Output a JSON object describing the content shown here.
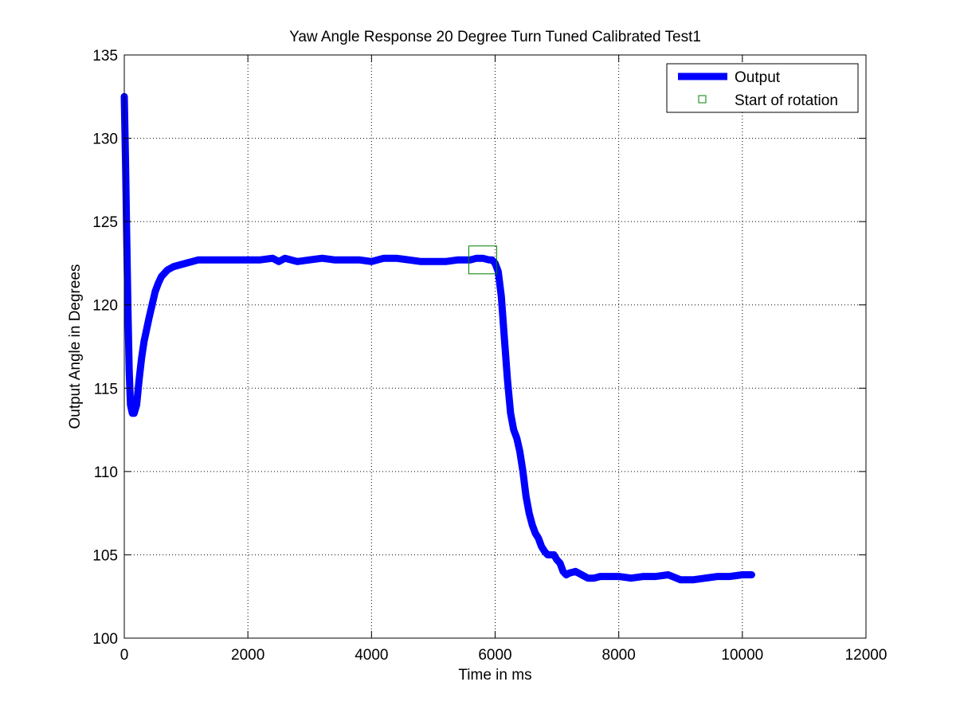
{
  "colors": {
    "output": "#0000ff",
    "marker": "#008000",
    "grid": "#000000",
    "axes": "#000000",
    "background": "#ffffff"
  },
  "chart_data": {
    "type": "line",
    "title": "Yaw Angle Response 20 Degree Turn Tuned Calibrated Test1",
    "xlabel": "Time in ms",
    "ylabel": "Output Angle in Degrees",
    "xlim": [
      0,
      12000
    ],
    "ylim": [
      100,
      135
    ],
    "xticks": [
      0,
      2000,
      4000,
      6000,
      8000,
      10000,
      12000
    ],
    "yticks": [
      100,
      105,
      110,
      115,
      120,
      125,
      130,
      135
    ],
    "xtick_labels": [
      "0",
      "2000",
      "4000",
      "6000",
      "8000",
      "10000",
      "12000"
    ],
    "ytick_labels": [
      "100",
      "105",
      "110",
      "115",
      "120",
      "125",
      "130",
      "135"
    ],
    "grid": true,
    "legend_position": "top-right",
    "legend": [
      "Output",
      "Start of rotation"
    ],
    "series": [
      {
        "name": "Output",
        "color": "#0000ff",
        "x": [
          0,
          20,
          40,
          60,
          80,
          100,
          130,
          160,
          200,
          240,
          280,
          320,
          360,
          400,
          450,
          500,
          550,
          600,
          650,
          700,
          800,
          900,
          1000,
          1100,
          1200,
          1400,
          1600,
          1800,
          2000,
          2200,
          2400,
          2500,
          2600,
          2800,
          3000,
          3200,
          3400,
          3600,
          3800,
          4000,
          4100,
          4200,
          4400,
          4600,
          4800,
          5000,
          5200,
          5400,
          5600,
          5700,
          5800,
          5900,
          5950,
          6000,
          6050,
          6100,
          6150,
          6200,
          6250,
          6300,
          6350,
          6400,
          6450,
          6500,
          6550,
          6600,
          6650,
          6700,
          6750,
          6800,
          6850,
          6900,
          6950,
          7000,
          7050,
          7100,
          7150,
          7200,
          7300,
          7400,
          7500,
          7600,
          7700,
          7800,
          8000,
          8200,
          8400,
          8600,
          8800,
          9000,
          9200,
          9400,
          9600,
          9800,
          10000,
          10150
        ],
        "values": [
          132.5,
          128.5,
          124.0,
          119.5,
          116.0,
          114.0,
          113.5,
          113.5,
          114.0,
          115.5,
          116.8,
          117.8,
          118.5,
          119.2,
          120.0,
          120.8,
          121.3,
          121.7,
          121.9,
          122.1,
          122.3,
          122.4,
          122.5,
          122.6,
          122.7,
          122.7,
          122.7,
          122.7,
          122.7,
          122.7,
          122.8,
          122.6,
          122.8,
          122.6,
          122.7,
          122.8,
          122.7,
          122.7,
          122.7,
          122.6,
          122.7,
          122.8,
          122.8,
          122.7,
          122.6,
          122.6,
          122.6,
          122.7,
          122.7,
          122.8,
          122.8,
          122.7,
          122.7,
          122.5,
          122.0,
          120.5,
          118.0,
          115.5,
          113.5,
          112.5,
          112.0,
          111.2,
          110.0,
          108.5,
          107.5,
          106.8,
          106.3,
          106.0,
          105.5,
          105.2,
          105.0,
          105.0,
          105.0,
          104.7,
          104.5,
          104.0,
          103.8,
          103.9,
          104.0,
          103.8,
          103.6,
          103.6,
          103.7,
          103.7,
          103.7,
          103.6,
          103.7,
          103.7,
          103.8,
          103.5,
          103.5,
          103.6,
          103.7,
          103.7,
          103.8,
          103.8
        ]
      }
    ],
    "markers": [
      {
        "name": "Start of rotation",
        "x": 5800,
        "y": 122.7,
        "shape": "square",
        "color": "#008000"
      }
    ]
  }
}
